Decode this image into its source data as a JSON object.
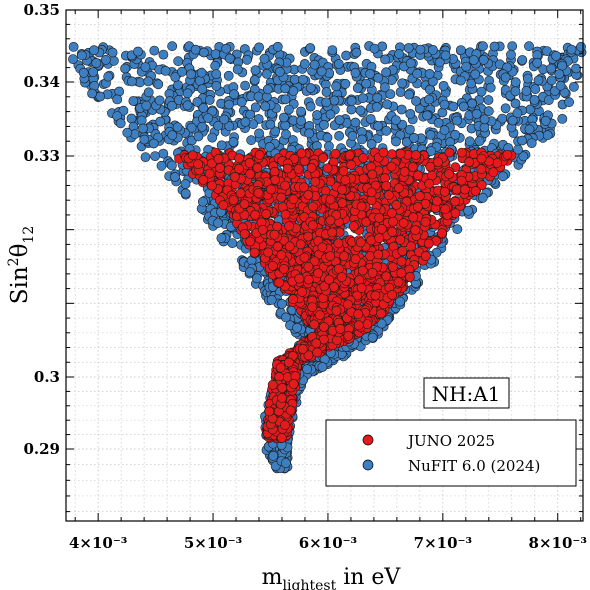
{
  "chart_data": {
    "type": "scatter",
    "title": "",
    "xlabel": {
      "main": "m",
      "sub": "lightest",
      "rest": " in eV"
    },
    "ylabel": {
      "main": "Sin",
      "sup": "2",
      "theta": "θ",
      "sub": "12"
    },
    "xlim": [
      0.00372,
      0.00822
    ],
    "ylim": [
      0.2808,
      0.35
    ],
    "xscale": "linear",
    "yscale": "nonlinear (squashed between 0.30 and 0.33)",
    "y_reference_ticks": [
      0.29,
      0.3,
      0.33,
      0.34,
      0.35
    ],
    "x_ticks": [
      {
        "value": 0.004,
        "label": "4×10⁻³"
      },
      {
        "value": 0.005,
        "label": "5×10⁻³"
      },
      {
        "value": 0.006,
        "label": "6×10⁻³"
      },
      {
        "value": 0.007,
        "label": "7×10⁻³"
      },
      {
        "value": 0.008,
        "label": "8×10⁻³"
      }
    ],
    "y_ticks": [
      {
        "value": 0.29,
        "label": "0.29"
      },
      {
        "value": 0.3,
        "label": "0.3"
      },
      {
        "value": 0.33,
        "label": "0.33"
      },
      {
        "value": 0.34,
        "label": "0.34"
      },
      {
        "value": 0.35,
        "label": "0.35"
      }
    ],
    "grid": true,
    "legend_position": "bottom-right",
    "annotation": "NH:A1",
    "series": [
      {
        "name": "NuFIT 6.0 (2024)",
        "color": "#3e7fc1",
        "region": {
          "y_top": 0.345,
          "y_bottom": 0.2875,
          "boundary": [
            {
              "y": 0.345,
              "x_min": 0.00372,
              "x_max": 0.00822
            },
            {
              "y": 0.34,
              "x_min": 0.00385,
              "x_max": 0.00818
            },
            {
              "y": 0.335,
              "x_min": 0.00415,
              "x_max": 0.00805
            },
            {
              "y": 0.33,
              "x_min": 0.0044,
              "x_max": 0.00778
            },
            {
              "y": 0.325,
              "x_min": 0.00475,
              "x_max": 0.0074
            },
            {
              "y": 0.32,
              "x_min": 0.005,
              "x_max": 0.00715
            },
            {
              "y": 0.315,
              "x_min": 0.00525,
              "x_max": 0.0069
            },
            {
              "y": 0.31,
              "x_min": 0.0055,
              "x_max": 0.00665
            },
            {
              "y": 0.305,
              "x_min": 0.00578,
              "x_max": 0.0064
            },
            {
              "y": 0.3,
              "x_min": 0.00555,
              "x_max": 0.0058
            },
            {
              "y": 0.295,
              "x_min": 0.00545,
              "x_max": 0.0057
            },
            {
              "y": 0.29,
              "x_min": 0.00545,
              "x_max": 0.00565
            },
            {
              "y": 0.2875,
              "x_min": 0.00555,
              "x_max": 0.00565
            }
          ]
        }
      },
      {
        "name": "JUNO 2025",
        "color": "#e41a1c",
        "region": {
          "y_top": 0.3305,
          "y_bottom": 0.2915,
          "boundary": [
            {
              "y": 0.3305,
              "x_min": 0.00465,
              "x_max": 0.00765
            },
            {
              "y": 0.327,
              "x_min": 0.00485,
              "x_max": 0.0074
            },
            {
              "y": 0.323,
              "x_min": 0.0051,
              "x_max": 0.00715
            },
            {
              "y": 0.318,
              "x_min": 0.0053,
              "x_max": 0.00695
            },
            {
              "y": 0.313,
              "x_min": 0.00555,
              "x_max": 0.0067
            },
            {
              "y": 0.309,
              "x_min": 0.00575,
              "x_max": 0.0065
            },
            {
              "y": 0.306,
              "x_min": 0.0059,
              "x_max": 0.0063
            },
            {
              "y": 0.302,
              "x_min": 0.00555,
              "x_max": 0.00575
            },
            {
              "y": 0.297,
              "x_min": 0.0055,
              "x_max": 0.0057
            },
            {
              "y": 0.2915,
              "x_min": 0.00545,
              "x_max": 0.00565
            }
          ]
        }
      }
    ]
  },
  "legend": {
    "items": [
      {
        "label": "JUNO 2025"
      },
      {
        "label": "NuFIT 6.0 (2024)"
      }
    ]
  }
}
